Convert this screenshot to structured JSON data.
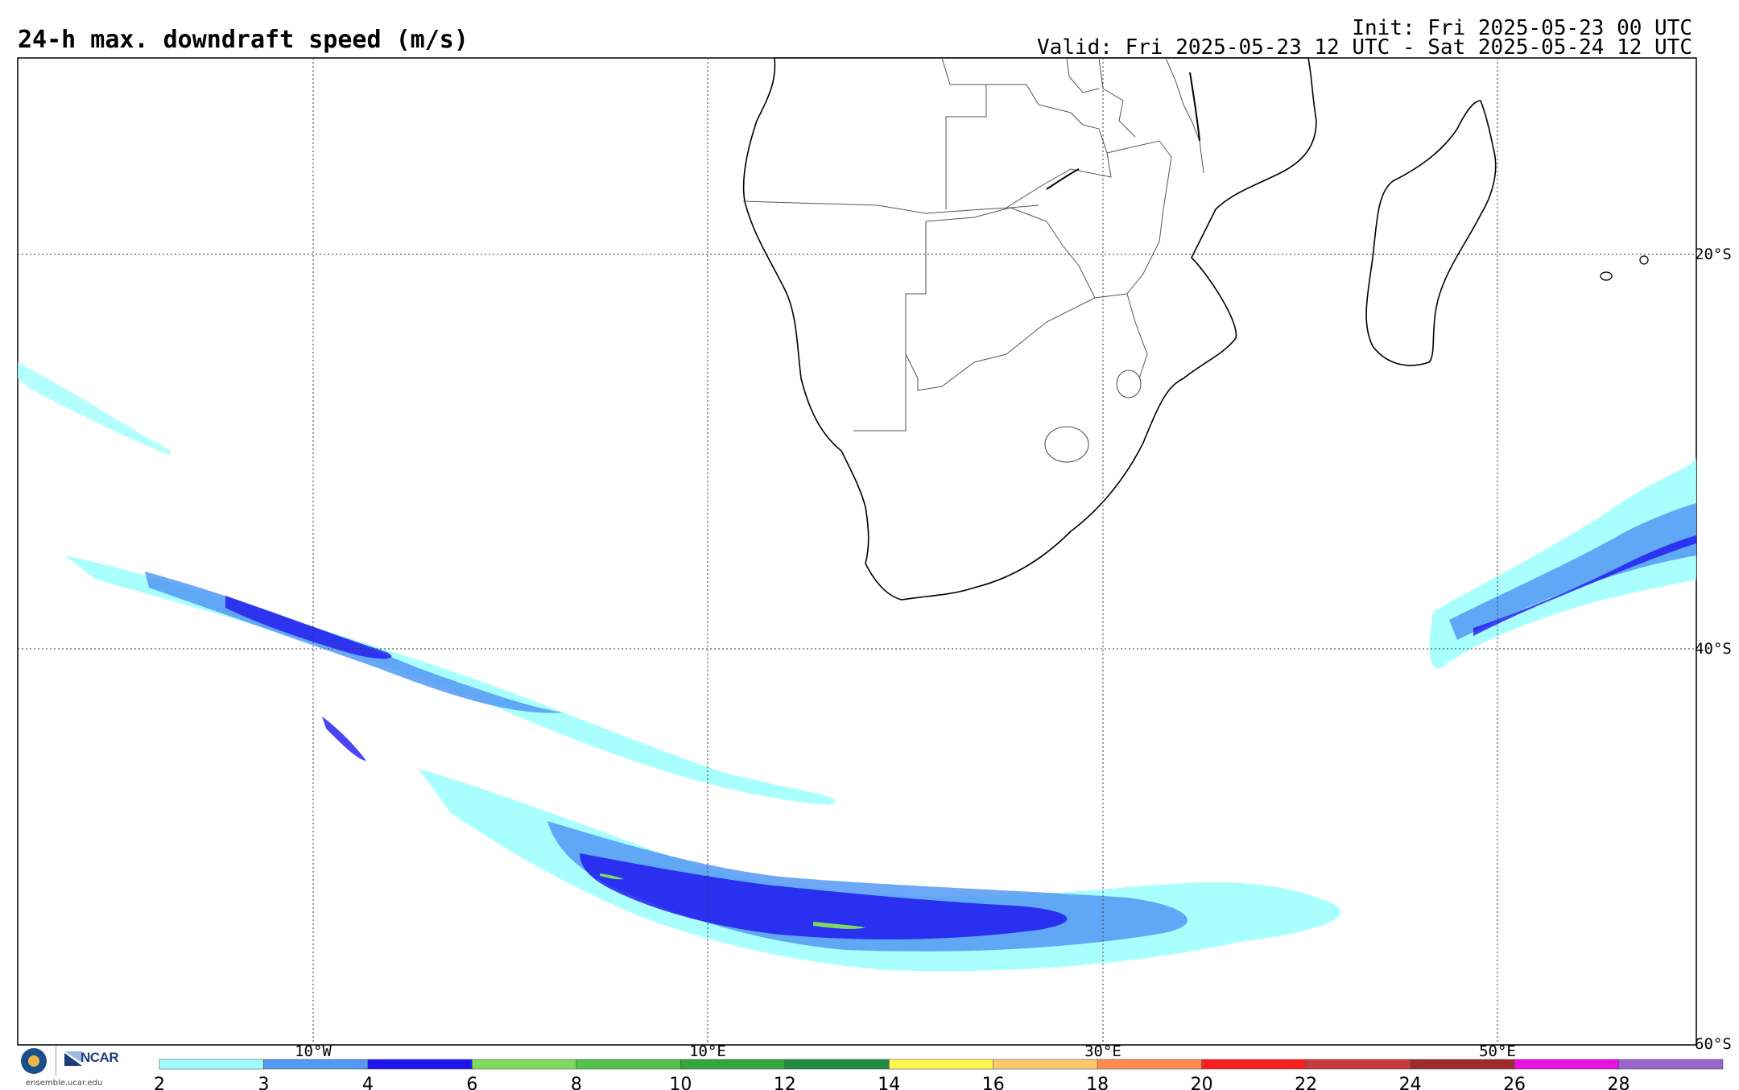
{
  "header": {
    "title": "24-h max. downdraft speed (m/s)",
    "init": "Init: Fri 2025-05-23 00 UTC",
    "valid": "Valid: Fri 2025-05-23 12 UTC - Sat 2025-05-24 12 UTC"
  },
  "map": {
    "lon_labels": [
      "10°W",
      "10°E",
      "30°E",
      "50°E"
    ],
    "lat_labels": [
      "20°S",
      "40°S",
      "60°S"
    ],
    "grid_style": "dotted",
    "land_fill": "#ffffff",
    "ocean_fill": "#ffffff",
    "coastline_color": "#000000",
    "border_color": "#555555"
  },
  "colorbar": {
    "ticks": [
      "2",
      "3",
      "4",
      "6",
      "8",
      "10",
      "12",
      "14",
      "16",
      "18",
      "20",
      "22",
      "24",
      "26",
      "28"
    ],
    "colors": [
      "#a0fffe",
      "#5399f5",
      "#1f16ee",
      "#7edb5e",
      "#52c14a",
      "#33a63d",
      "#218b3f",
      "#fdf752",
      "#fdc76c",
      "#fe8a50",
      "#f91f1e",
      "#c63a3a",
      "#a02a2a",
      "#e910e3",
      "#9b66cc"
    ]
  },
  "footer": {
    "nsf_logo": "NSF",
    "ncar_label": "NCAR",
    "url": "ensemble.ucar.edu"
  }
}
